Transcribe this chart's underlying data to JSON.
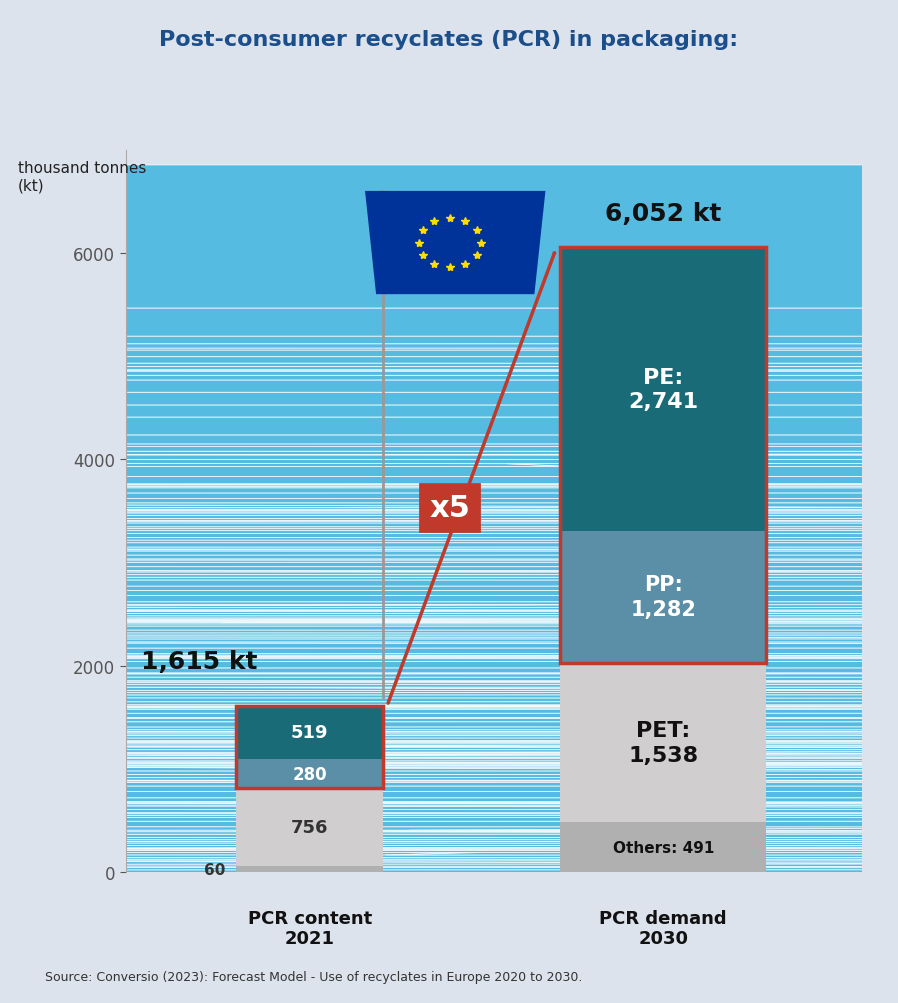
{
  "title": "Post-consumer recyclates (PCR) in packaging:",
  "title_color": "#1b4f8c",
  "background_color": "#dde3ec",
  "ylabel": "thousand tonnes\n(kt)",
  "ylim_max": 7000,
  "yticks": [
    0,
    2000,
    4000,
    6000
  ],
  "source_text": "Source: Conversio (2023): Forecast Model - Use of recyclates in Europe 2020 to 2030.",
  "bar1_label": "PCR content\n2021",
  "bar1_total_label": "1,615 kt",
  "bar1_total": 1615,
  "bar1_others": 60,
  "bar1_PET": 756,
  "bar1_PP": 280,
  "bar1_PE": 519,
  "bar2_label": "PCR demand\n2030",
  "bar2_total_label": "6,052 kt",
  "bar2_total": 6052,
  "bar2_others": 491,
  "bar2_PET": 1538,
  "bar2_PP": 1282,
  "bar2_PE": 2741,
  "color_PE_dark": "#1a6b78",
  "color_PP_mid": "#5b8fa8",
  "color_PET_light": "#d0cece",
  "color_others_gray": "#b0b0b0",
  "color_bar_border": "#c0392b",
  "color_arrow": "#c0392b",
  "color_flag_blue": "#003399",
  "color_star": "#FFDD00",
  "color_flag_pole": "#999999",
  "color_mosaic": "#3eb5e0",
  "color_mosaic_edge": "#ffffff"
}
